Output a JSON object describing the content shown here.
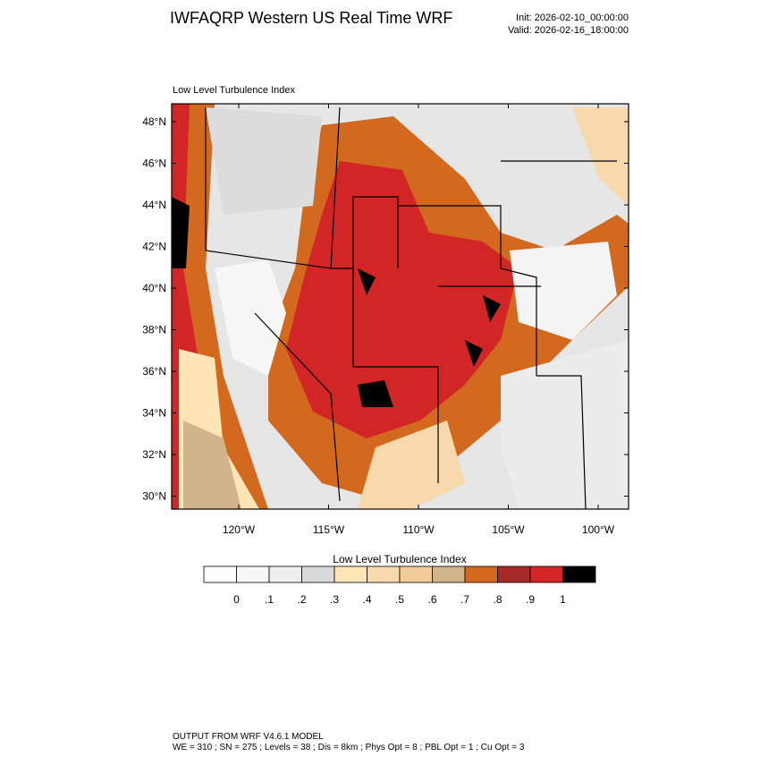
{
  "header": {
    "title": "IWFAQRP Western US Real Time WRF",
    "init": "Init: 2026-02-10_00:00:00",
    "valid": "Valid: 2026-02-16_18:00:00"
  },
  "map": {
    "subtitle": "Low Level Turbulence Index",
    "lat_labels": [
      "48°N",
      "46°N",
      "44°N",
      "42°N",
      "40°N",
      "38°N",
      "36°N",
      "34°N",
      "32°N",
      "30°N"
    ],
    "lon_labels": [
      "120°W",
      "115°W",
      "110°W",
      "105°W",
      "100°W"
    ]
  },
  "colorbar": {
    "title": "Low Level Turbulence Index",
    "colors": [
      "#ffffff",
      "#f7f7f7",
      "#eeeeee",
      "#dadada",
      "#ffe4b5",
      "#f8d9ad",
      "#f3cb98",
      "#d2b48c",
      "#d2691e",
      "#a52a2a",
      "#d22626",
      "#000000"
    ],
    "labels": [
      "0",
      ".1",
      ".2",
      ".3",
      ".4",
      ".5",
      ".6",
      ".7",
      ".8",
      ".9",
      "1"
    ]
  },
  "footer": {
    "line1": "OUTPUT FROM WRF V4.6.1 MODEL",
    "line2": "WE = 310 ; SN = 275 ; Levels = 38 ; Dis = 8km ; Phys Opt = 8 ; PBL Opt = 1 ; Cu Opt = 3"
  }
}
